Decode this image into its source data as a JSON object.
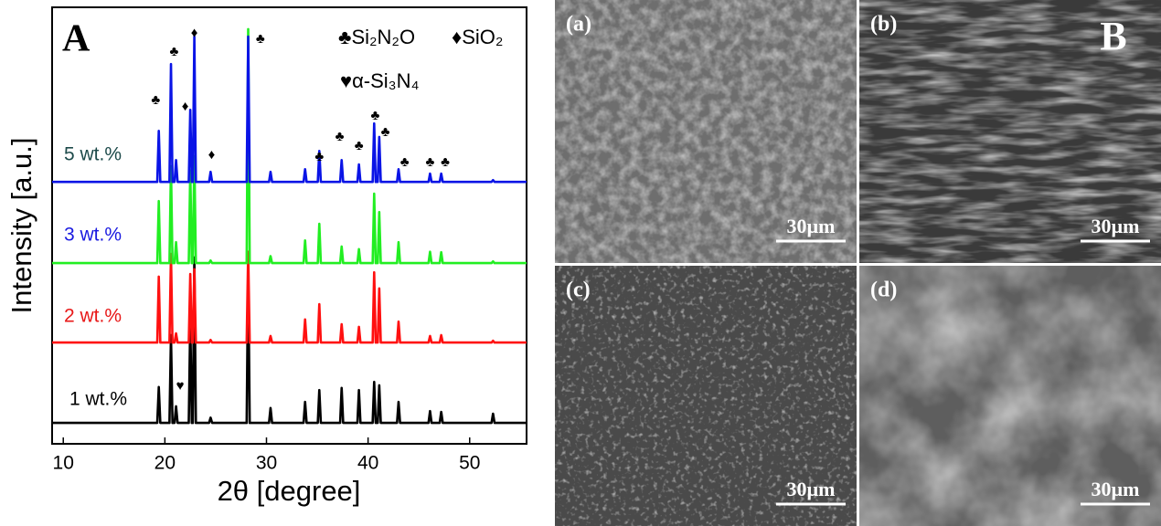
{
  "chart_data": {
    "type": "line",
    "panel_label": "A",
    "xlabel": "2θ [degree]",
    "ylabel": "Intensity [a.u.]",
    "xlim": [
      8.9,
      55.6
    ],
    "xticks": [
      10,
      20,
      30,
      40,
      50
    ],
    "ylim": [
      0,
      100
    ],
    "x": [
      8.9,
      19.25,
      19.4,
      19.55,
      20.45,
      20.6,
      20.75,
      20.95,
      21.1,
      21.25,
      22.35,
      22.5,
      22.65,
      22.75,
      22.9,
      23.05,
      24.35,
      24.5,
      24.65,
      28.05,
      28.2,
      28.35,
      30.25,
      30.4,
      30.55,
      33.65,
      33.8,
      33.95,
      35.05,
      35.2,
      35.35,
      37.25,
      37.4,
      37.55,
      38.95,
      39.1,
      39.25,
      40.45,
      40.6,
      40.75,
      40.95,
      41.1,
      41.25,
      42.85,
      43.0,
      43.15,
      45.95,
      46.1,
      46.25,
      47.05,
      47.2,
      47.35,
      52.15,
      52.3,
      52.45,
      55.6
    ],
    "series": [
      {
        "name": "5 wt.%",
        "color": "#0a14e6",
        "label_color": "#1d4a4a",
        "values": [
          60,
          60,
          71.7,
          60,
          60,
          87,
          60,
          60,
          65,
          60,
          60,
          76.5,
          60,
          60,
          93.3,
          60,
          60,
          62.3,
          60,
          60,
          93.3,
          60,
          60,
          62.3,
          60,
          60,
          62.9,
          60,
          60,
          67.1,
          60,
          60,
          65,
          60,
          60,
          64,
          60,
          60,
          73.4,
          60,
          60,
          70.3,
          60,
          60,
          62.9,
          60,
          60,
          61.9,
          60,
          60,
          61.9,
          60,
          60,
          60.4,
          60,
          60
        ]
      },
      {
        "name": "3 wt.%",
        "color": "#22ee22",
        "label_color": "#1a1ae0",
        "values": [
          41.4,
          41.4,
          55.6,
          41.4,
          41.4,
          63.6,
          41.4,
          41.4,
          46.2,
          41.4,
          41.4,
          62.6,
          41.4,
          41.4,
          65.9,
          41.4,
          41.4,
          42,
          41.4,
          41.4,
          95,
          41.4,
          41.4,
          43,
          41.4,
          41.4,
          46.6,
          41.4,
          41.4,
          50.4,
          41.4,
          41.4,
          45.2,
          41.4,
          41.4,
          44.6,
          41.4,
          41.4,
          57.3,
          41.4,
          41.4,
          53.1,
          41.4,
          41.4,
          46.2,
          41.4,
          41.4,
          44,
          41.4,
          41.4,
          43.9,
          41.4,
          41.4,
          41.8,
          41.4,
          41.4
        ]
      },
      {
        "name": "2 wt.%",
        "color": "#ff1010",
        "label_color": "#e81818",
        "values": [
          23.2,
          23.2,
          38.3,
          23.2,
          23.2,
          43.5,
          23.2,
          23.2,
          25.3,
          23.2,
          23.2,
          38.9,
          23.2,
          23.2,
          40,
          23.2,
          23.2,
          23.8,
          23.2,
          23.2,
          44,
          23.2,
          23.2,
          24.7,
          23.2,
          23.2,
          28.5,
          23.2,
          23.2,
          32,
          23.2,
          23.2,
          27.4,
          23.2,
          23.2,
          26.8,
          23.2,
          23.2,
          39.3,
          23.2,
          23.2,
          35.6,
          23.2,
          23.2,
          28,
          23.2,
          23.2,
          24.7,
          23.2,
          23.2,
          24.9,
          23.2,
          23.2,
          23.6,
          23.2,
          23.2
        ]
      },
      {
        "name": "1 wt.%",
        "color": "#000000",
        "label_color": "#000000",
        "values": [
          4.8,
          4.8,
          13,
          4.8,
          4.8,
          24.9,
          4.8,
          4.8,
          8.6,
          4.8,
          4.8,
          28.5,
          4.8,
          4.8,
          42.7,
          4.8,
          4.8,
          6,
          4.8,
          4.8,
          41,
          4.8,
          4.8,
          8.2,
          4.8,
          4.8,
          9.6,
          4.8,
          4.8,
          12.3,
          4.8,
          4.8,
          12.8,
          4.8,
          4.8,
          12.3,
          4.8,
          4.8,
          14.2,
          4.8,
          4.8,
          13.4,
          4.8,
          4.8,
          9.6,
          4.8,
          4.8,
          7.5,
          4.8,
          4.8,
          7.3,
          4.8,
          4.8,
          6.9,
          4.8,
          4.8
        ]
      }
    ],
    "legend": [
      "♣Si₂N₂O",
      "♦SiO₂",
      "♥α-Si₃N₄"
    ],
    "peak_markers": [
      {
        "symbol": "♣",
        "x": 19.1,
        "y": 78.7
      },
      {
        "symbol": "♣",
        "x": 20.9,
        "y": 89.7
      },
      {
        "symbol": "♦",
        "x": 22.9,
        "y": 94
      },
      {
        "symbol": "♦",
        "x": 22.0,
        "y": 77.2
      },
      {
        "symbol": "♦",
        "x": 24.6,
        "y": 66.1
      },
      {
        "symbol": "♣",
        "x": 29.4,
        "y": 92.7
      },
      {
        "symbol": "♣",
        "x": 35.2,
        "y": 65.7
      },
      {
        "symbol": "♣",
        "x": 37.2,
        "y": 70.3
      },
      {
        "symbol": "♣",
        "x": 39.1,
        "y": 68.2
      },
      {
        "symbol": "♣",
        "x": 40.7,
        "y": 75.1
      },
      {
        "symbol": "♣",
        "x": 41.7,
        "y": 71.3
      },
      {
        "symbol": "♣",
        "x": 43.6,
        "y": 64.4
      },
      {
        "symbol": "♣",
        "x": 46.1,
        "y": 64.4
      },
      {
        "symbol": "♣",
        "x": 47.6,
        "y": 64.4
      },
      {
        "symbol": "♥",
        "x": 21.5,
        "y": 13.2
      }
    ]
  },
  "micrographs": {
    "panel_label": "B",
    "images": [
      {
        "label": "(a)",
        "scale_bar": "30µm"
      },
      {
        "label": "(b)",
        "scale_bar": "30µm"
      },
      {
        "label": "(c)",
        "scale_bar": "30µm"
      },
      {
        "label": "(d)",
        "scale_bar": "30µm"
      }
    ]
  }
}
